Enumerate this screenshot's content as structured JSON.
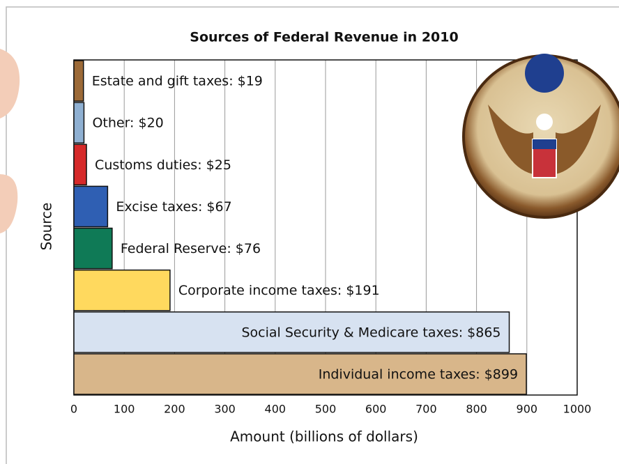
{
  "chart_data": {
    "type": "barh",
    "title": "Sources of Federal Revenue in 2010",
    "xlabel": "Amount (billions of dollars)",
    "ylabel": "Source",
    "values": [
      19,
      20,
      25,
      67,
      76,
      191,
      865,
      899
    ],
    "value_labels": [
      "Estate and gift taxes: $19",
      "Other: $20",
      "Customs duties: $25",
      "Excise taxes: $67",
      "Federal Reserve: $76",
      "Corporate income taxes: $191",
      "Social Security & Medicare taxes: $865",
      "Individual income taxes: $899"
    ],
    "colors": [
      "#9c6a38",
      "#8fb0d2",
      "#d62a2a",
      "#2f5fb3",
      "#0f7a56",
      "#ffd95e",
      "#d7e2f1",
      "#d8b68a"
    ],
    "xlim": [
      0,
      1000
    ],
    "xticks": [
      0,
      100,
      200,
      300,
      400,
      500,
      600,
      700,
      800,
      900,
      1000
    ],
    "grid": true
  }
}
